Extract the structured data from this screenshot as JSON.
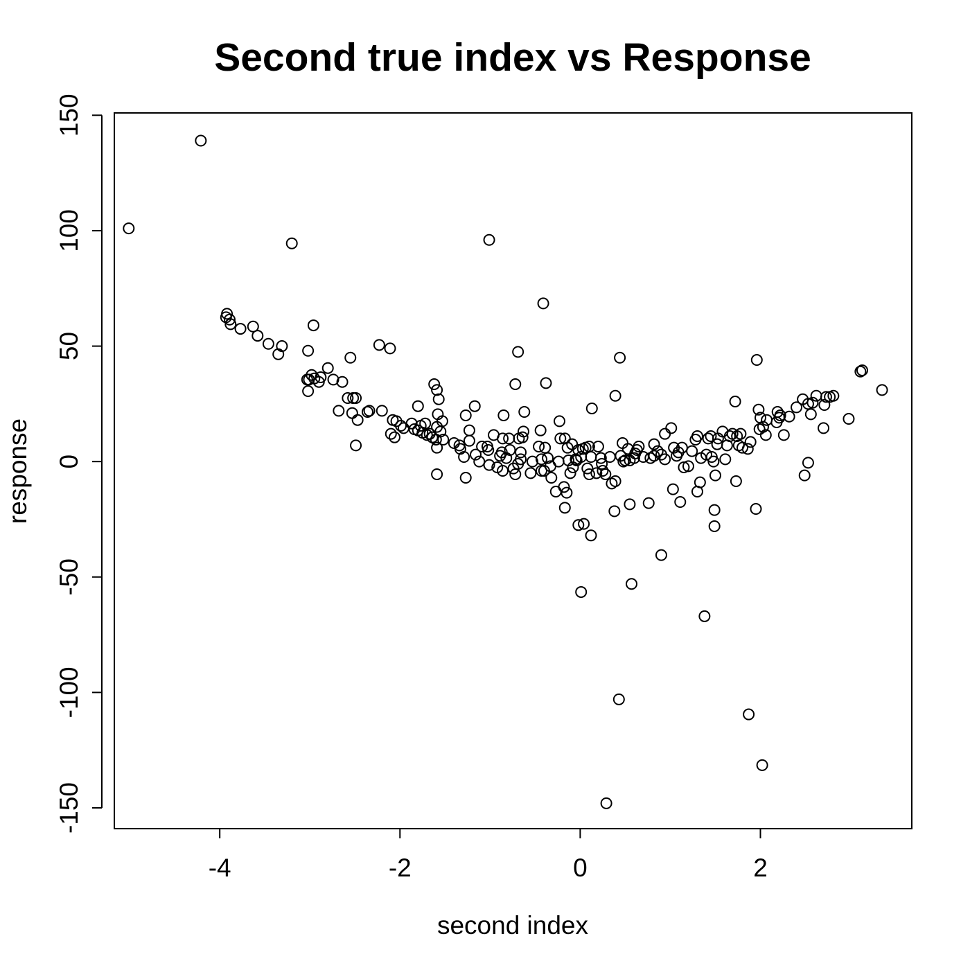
{
  "chart_data": {
    "type": "scatter",
    "title": "Second true index vs Response",
    "xlabel": "second index",
    "ylabel": "response",
    "xlim": [
      -5.17,
      3.68
    ],
    "ylim": [
      -159,
      151
    ],
    "xticks": [
      -4,
      -2,
      0,
      2
    ],
    "xtick_labels": [
      "-4",
      "-2",
      "0",
      "2"
    ],
    "yticks": [
      -150,
      -100,
      -50,
      0,
      50,
      100,
      150
    ],
    "ytick_labels": [
      "-150",
      "-100",
      "-50",
      "0",
      "50",
      "100",
      "150"
    ],
    "grid": false,
    "marker": "open-circle",
    "points": [
      [
        -5.01,
        101
      ],
      [
        -4.21,
        139
      ],
      [
        -3.2,
        94.5
      ],
      [
        -1.01,
        96
      ],
      [
        -3.93,
        62.5
      ],
      [
        -3.92,
        64
      ],
      [
        -3.89,
        61.5
      ],
      [
        -3.88,
        59.5
      ],
      [
        -3.77,
        57.5
      ],
      [
        -3.63,
        58.5
      ],
      [
        -3.58,
        54.5
      ],
      [
        -3.46,
        51
      ],
      [
        -3.35,
        46.5
      ],
      [
        -3.31,
        50
      ],
      [
        -3.02,
        48
      ],
      [
        -2.96,
        59
      ],
      [
        -3.03,
        35.5
      ],
      [
        -3.01,
        35.5
      ],
      [
        -2.98,
        37.5
      ],
      [
        -2.95,
        36
      ],
      [
        -2.9,
        34.5
      ],
      [
        -2.88,
        36.5
      ],
      [
        -3.02,
        30.5
      ],
      [
        -2.8,
        40.5
      ],
      [
        -2.74,
        35.5
      ],
      [
        -2.64,
        34.5
      ],
      [
        -2.58,
        27.5
      ],
      [
        -2.55,
        45
      ],
      [
        -2.52,
        27.5
      ],
      [
        -2.49,
        27.5
      ],
      [
        -2.68,
        22
      ],
      [
        -2.53,
        21
      ],
      [
        -2.47,
        18
      ],
      [
        -2.36,
        21.5
      ],
      [
        -2.34,
        22
      ],
      [
        -2.49,
        7
      ],
      [
        -2.23,
        50.5
      ],
      [
        -2.2,
        22
      ],
      [
        -2.11,
        49
      ],
      [
        -2.08,
        18
      ],
      [
        -2.04,
        17.5
      ],
      [
        -2.1,
        12
      ],
      [
        -2.06,
        10.5
      ],
      [
        -1.99,
        15.5
      ],
      [
        -1.96,
        14.5
      ],
      [
        -1.87,
        16.5
      ],
      [
        -1.84,
        14
      ],
      [
        -1.8,
        24
      ],
      [
        -1.8,
        13.5
      ],
      [
        -1.77,
        15.5
      ],
      [
        -1.75,
        12.5
      ],
      [
        -1.72,
        16.5
      ],
      [
        -1.7,
        11.5
      ],
      [
        -1.67,
        12
      ],
      [
        -1.64,
        10.5
      ],
      [
        -1.62,
        33.5
      ],
      [
        -1.59,
        31
      ],
      [
        -1.57,
        27
      ],
      [
        -1.58,
        20.5
      ],
      [
        -1.59,
        15
      ],
      [
        -1.53,
        17.5
      ],
      [
        -1.55,
        13
      ],
      [
        -1.52,
        9.5
      ],
      [
        -1.6,
        9.5
      ],
      [
        -1.59,
        6
      ],
      [
        -1.59,
        -5.5
      ],
      [
        -1.4,
        8
      ],
      [
        -1.34,
        7
      ],
      [
        -1.33,
        5.5
      ],
      [
        -1.29,
        2
      ],
      [
        -1.27,
        20
      ],
      [
        -1.27,
        -7
      ],
      [
        -1.23,
        9
      ],
      [
        -1.23,
        13.5
      ],
      [
        -1.17,
        24
      ],
      [
        -1.16,
        3
      ],
      [
        -1.12,
        0
      ],
      [
        -1.09,
        6.5
      ],
      [
        -1.03,
        6.5
      ],
      [
        -1.02,
        5
      ],
      [
        -1.01,
        -1.5
      ],
      [
        -0.96,
        11.5
      ],
      [
        -0.92,
        -2.5
      ],
      [
        -0.89,
        2.5
      ],
      [
        -0.87,
        4
      ],
      [
        -0.86,
        10
      ],
      [
        -0.85,
        20
      ],
      [
        -0.86,
        -4
      ],
      [
        -0.82,
        1.5
      ],
      [
        -0.79,
        10
      ],
      [
        -0.78,
        5
      ],
      [
        -0.74,
        -3
      ],
      [
        -0.72,
        33.5
      ],
      [
        -0.72,
        -5.5
      ],
      [
        -0.69,
        47.5
      ],
      [
        -0.69,
        -1
      ],
      [
        -0.68,
        10
      ],
      [
        -0.66,
        1
      ],
      [
        -0.66,
        4
      ],
      [
        -0.64,
        10.5
      ],
      [
        -0.63,
        13
      ],
      [
        -0.62,
        21.5
      ],
      [
        -0.55,
        -5
      ],
      [
        -0.53,
        0
      ],
      [
        -0.46,
        6.5
      ],
      [
        -0.44,
        13.5
      ],
      [
        -0.43,
        1
      ],
      [
        -0.43,
        -4
      ],
      [
        -0.41,
        68.5
      ],
      [
        -0.4,
        -4
      ],
      [
        -0.39,
        6
      ],
      [
        -0.38,
        34
      ],
      [
        -0.36,
        1.5
      ],
      [
        -0.33,
        -2
      ],
      [
        -0.32,
        -7
      ],
      [
        -0.27,
        -13
      ],
      [
        -0.24,
        0
      ],
      [
        -0.23,
        17.5
      ],
      [
        -0.22,
        10
      ],
      [
        -0.18,
        -11
      ],
      [
        -0.17,
        10
      ],
      [
        -0.17,
        -20
      ],
      [
        -0.15,
        -13.5
      ],
      [
        -0.14,
        6
      ],
      [
        -0.13,
        0.5
      ],
      [
        -0.11,
        -5
      ],
      [
        -0.09,
        7.5
      ],
      [
        -0.08,
        -2.5
      ],
      [
        -0.05,
        1
      ],
      [
        -0.04,
        0.5
      ],
      [
        -0.02,
        5
      ],
      [
        -0.02,
        -27.5
      ],
      [
        0.01,
        2
      ],
      [
        0.01,
        -56.5
      ],
      [
        0.03,
        5.5
      ],
      [
        0.04,
        -27
      ],
      [
        0.06,
        6
      ],
      [
        0.08,
        -3
      ],
      [
        0.1,
        6.5
      ],
      [
        0.1,
        -5.5
      ],
      [
        0.12,
        2
      ],
      [
        0.12,
        -32
      ],
      [
        0.13,
        23
      ],
      [
        0.18,
        -5
      ],
      [
        0.2,
        6.5
      ],
      [
        0.23,
        1.5
      ],
      [
        0.24,
        -1
      ],
      [
        0.25,
        -4
      ],
      [
        0.28,
        -5.5
      ],
      [
        0.29,
        -148
      ],
      [
        0.33,
        2
      ],
      [
        0.35,
        -9.5
      ],
      [
        0.38,
        -21.5
      ],
      [
        0.39,
        28.5
      ],
      [
        0.39,
        -8.5
      ],
      [
        0.43,
        -103
      ],
      [
        0.44,
        45
      ],
      [
        0.45,
        2.5
      ],
      [
        0.47,
        8
      ],
      [
        0.48,
        0
      ],
      [
        0.5,
        0.5
      ],
      [
        0.53,
        5.5
      ],
      [
        0.55,
        -18.5
      ],
      [
        0.55,
        0.5
      ],
      [
        0.57,
        -53
      ],
      [
        0.6,
        1.5
      ],
      [
        0.61,
        3.5
      ],
      [
        0.63,
        5
      ],
      [
        0.65,
        6.5
      ],
      [
        0.7,
        2
      ],
      [
        0.76,
        -18
      ],
      [
        0.78,
        1.5
      ],
      [
        0.82,
        7.5
      ],
      [
        0.82,
        2.5
      ],
      [
        0.86,
        4.5
      ],
      [
        0.9,
        -40.5
      ],
      [
        0.9,
        3
      ],
      [
        0.94,
        12
      ],
      [
        0.94,
        1
      ],
      [
        1.01,
        14.5
      ],
      [
        1.03,
        -12
      ],
      [
        1.04,
        6
      ],
      [
        1.07,
        2.5
      ],
      [
        1.09,
        4
      ],
      [
        1.11,
        -17.5
      ],
      [
        1.13,
        6
      ],
      [
        1.15,
        -2.5
      ],
      [
        1.2,
        -2
      ],
      [
        1.24,
        4.5
      ],
      [
        1.28,
        9.5
      ],
      [
        1.3,
        11
      ],
      [
        1.3,
        -13
      ],
      [
        1.33,
        -9
      ],
      [
        1.34,
        1.5
      ],
      [
        1.38,
        -67
      ],
      [
        1.4,
        3
      ],
      [
        1.42,
        10
      ],
      [
        1.45,
        11
      ],
      [
        1.46,
        2
      ],
      [
        1.48,
        0
      ],
      [
        1.49,
        -21
      ],
      [
        1.49,
        -28
      ],
      [
        1.5,
        -6
      ],
      [
        1.52,
        7.5
      ],
      [
        1.53,
        10
      ],
      [
        1.58,
        13
      ],
      [
        1.61,
        1
      ],
      [
        1.63,
        7
      ],
      [
        1.66,
        11
      ],
      [
        1.69,
        12
      ],
      [
        1.72,
        26
      ],
      [
        1.73,
        -8.5
      ],
      [
        1.74,
        11
      ],
      [
        1.76,
        7
      ],
      [
        1.78,
        12
      ],
      [
        1.8,
        6
      ],
      [
        1.86,
        5.5
      ],
      [
        1.87,
        -109.5
      ],
      [
        1.89,
        8.5
      ],
      [
        1.95,
        -20.5
      ],
      [
        1.96,
        44
      ],
      [
        1.98,
        22.5
      ],
      [
        1.99,
        14
      ],
      [
        2.0,
        19
      ],
      [
        2.02,
        -131.5
      ],
      [
        2.03,
        15
      ],
      [
        2.06,
        11.5
      ],
      [
        2.07,
        18
      ],
      [
        2.18,
        17
      ],
      [
        2.19,
        21.5
      ],
      [
        2.21,
        19
      ],
      [
        2.22,
        20
      ],
      [
        2.26,
        11.5
      ],
      [
        2.32,
        19.5
      ],
      [
        2.4,
        23.5
      ],
      [
        2.47,
        27
      ],
      [
        2.49,
        -6
      ],
      [
        2.53,
        25
      ],
      [
        2.53,
        -0.5
      ],
      [
        2.56,
        20.5
      ],
      [
        2.58,
        25.5
      ],
      [
        2.62,
        28.5
      ],
      [
        2.7,
        14.5
      ],
      [
        2.71,
        24.5
      ],
      [
        2.73,
        28
      ],
      [
        2.77,
        28
      ],
      [
        2.81,
        28.5
      ],
      [
        2.98,
        18.5
      ],
      [
        3.11,
        39
      ],
      [
        3.13,
        39.5
      ],
      [
        3.35,
        31
      ]
    ]
  }
}
